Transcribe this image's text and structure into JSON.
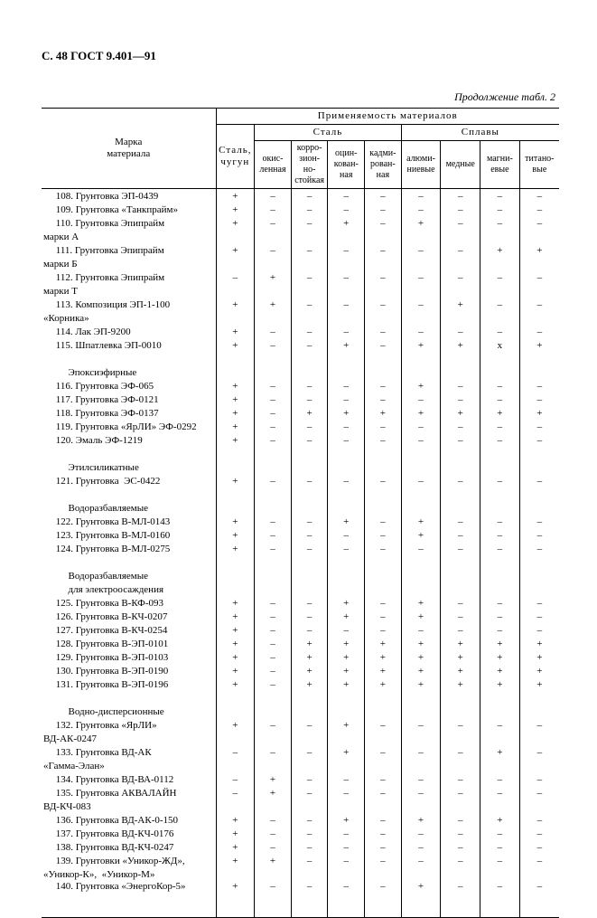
{
  "header": "С. 48 ГОСТ 9.401—91",
  "continuation": "Продолжение табл. 2",
  "thead": {
    "applic": "Применяемость  материалов",
    "label1": "Марка",
    "label2": "материала",
    "steel_iron1": "Сталь,",
    "steel_iron2": "чугун",
    "steel_group": "Сталь",
    "alloy_group": "Сплавы",
    "sub_oxid": "окис-\nленная",
    "sub_corr": "корро-\nзион-\nно-\nстойкая",
    "sub_zinc": "оцин-\nкован-\nная",
    "sub_cadm": "кадми-\nрован-\nная",
    "sub_alum": "алюми-\nниевые",
    "sub_copper": "медные",
    "sub_magn": "магни-\nевые",
    "sub_titan": "титано-\nвые"
  },
  "rows": [
    {
      "l": "     108. Грунтовка ЭП-0439",
      "c": [
        "+",
        "–",
        "–",
        "–",
        "–",
        "–",
        "–",
        "–",
        "–"
      ]
    },
    {
      "l": "     109. Грунтовка «Танкпрайм»",
      "c": [
        "+",
        "–",
        "–",
        "–",
        "–",
        "–",
        "–",
        "–",
        "–"
      ]
    },
    {
      "l": "     110. Грунтовка Эпипрайм",
      "c": [
        "+",
        "–",
        "–",
        "+",
        "–",
        "+",
        "–",
        "–",
        "–"
      ]
    },
    {
      "l": "марки А",
      "c": [
        "",
        "",
        "",
        "",
        "",
        "",
        "",
        "",
        ""
      ]
    },
    {
      "l": "     111. Грунтовка Эпипрайм",
      "c": [
        "+",
        "–",
        "–",
        "–",
        "–",
        "–",
        "–",
        "+",
        "+"
      ]
    },
    {
      "l": "марки Б",
      "c": [
        "",
        "",
        "",
        "",
        "",
        "",
        "",
        "",
        ""
      ]
    },
    {
      "l": "     112. Грунтовка Эпипрайм",
      "c": [
        "–",
        "+",
        "–",
        "–",
        "–",
        "–",
        "–",
        "–",
        "–"
      ]
    },
    {
      "l": "марки Т",
      "c": [
        "",
        "",
        "",
        "",
        "",
        "",
        "",
        "",
        ""
      ]
    },
    {
      "l": "     113. Композиция ЭП-1-100",
      "c": [
        "+",
        "+",
        "–",
        "–",
        "–",
        "–",
        "+",
        "–",
        "–"
      ]
    },
    {
      "l": "«Корника»",
      "c": [
        "",
        "",
        "",
        "",
        "",
        "",
        "",
        "",
        ""
      ]
    },
    {
      "l": "     114. Лак ЭП-9200",
      "c": [
        "+",
        "–",
        "–",
        "–",
        "–",
        "–",
        "–",
        "–",
        "–"
      ]
    },
    {
      "l": "     115. Шпатлевка ЭП-0010",
      "c": [
        "+",
        "–",
        "–",
        "+",
        "–",
        "+",
        "+",
        "х",
        "+"
      ]
    },
    {
      "l": "",
      "c": [
        "",
        "",
        "",
        "",
        "",
        "",
        "",
        "",
        ""
      ],
      "blank": true
    },
    {
      "l": "          Эпоксиэфирные",
      "c": [
        "",
        "",
        "",
        "",
        "",
        "",
        "",
        "",
        ""
      ]
    },
    {
      "l": "     116. Грунтовка ЭФ-065",
      "c": [
        "+",
        "–",
        "–",
        "–",
        "–",
        "+",
        "–",
        "–",
        "–"
      ]
    },
    {
      "l": "     117. Грунтовка ЭФ-0121",
      "c": [
        "+",
        "–",
        "–",
        "–",
        "–",
        "–",
        "–",
        "–",
        "–"
      ]
    },
    {
      "l": "     118. Грунтовка ЭФ-0137",
      "c": [
        "+",
        "–",
        "+",
        "+",
        "+",
        "+",
        "+",
        "+",
        "+"
      ]
    },
    {
      "l": "     119. Грунтовка «ЯрЛИ» ЭФ-0292",
      "c": [
        "+",
        "–",
        "–",
        "–",
        "–",
        "–",
        "–",
        "–",
        "–"
      ]
    },
    {
      "l": "     120. Эмаль ЭФ-1219",
      "c": [
        "+",
        "–",
        "–",
        "–",
        "–",
        "–",
        "–",
        "–",
        "–"
      ]
    },
    {
      "l": "",
      "c": [
        "",
        "",
        "",
        "",
        "",
        "",
        "",
        "",
        ""
      ],
      "blank": true
    },
    {
      "l": "          Этилсиликатные",
      "c": [
        "",
        "",
        "",
        "",
        "",
        "",
        "",
        "",
        ""
      ]
    },
    {
      "l": "     121. Грунтовка  ЭС-0422",
      "c": [
        "+",
        "–",
        "–",
        "–",
        "–",
        "–",
        "–",
        "–",
        "–"
      ]
    },
    {
      "l": "",
      "c": [
        "",
        "",
        "",
        "",
        "",
        "",
        "",
        "",
        ""
      ],
      "blank": true
    },
    {
      "l": "          Водоразбавляемые",
      "c": [
        "",
        "",
        "",
        "",
        "",
        "",
        "",
        "",
        ""
      ]
    },
    {
      "l": "     122. Грунтовка В-МЛ-0143",
      "c": [
        "+",
        "–",
        "–",
        "+",
        "–",
        "+",
        "–",
        "–",
        "–"
      ]
    },
    {
      "l": "     123. Грунтовка В-МЛ-0160",
      "c": [
        "+",
        "–",
        "–",
        "–",
        "–",
        "+",
        "–",
        "–",
        "–"
      ]
    },
    {
      "l": "     124. Грунтовка В-МЛ-0275",
      "c": [
        "+",
        "–",
        "–",
        "–",
        "–",
        "–",
        "–",
        "–",
        "–"
      ]
    },
    {
      "l": "",
      "c": [
        "",
        "",
        "",
        "",
        "",
        "",
        "",
        "",
        ""
      ],
      "blank": true
    },
    {
      "l": "          Водоразбавляемые",
      "c": [
        "",
        "",
        "",
        "",
        "",
        "",
        "",
        "",
        ""
      ]
    },
    {
      "l": "          для электроосаждения",
      "c": [
        "",
        "",
        "",
        "",
        "",
        "",
        "",
        "",
        ""
      ]
    },
    {
      "l": "     125. Грунтовка В-КФ-093",
      "c": [
        "+",
        "–",
        "–",
        "+",
        "–",
        "+",
        "–",
        "–",
        "–"
      ]
    },
    {
      "l": "     126. Грунтовка В-КЧ-0207",
      "c": [
        "+",
        "–",
        "–",
        "+",
        "–",
        "+",
        "–",
        "–",
        "–"
      ]
    },
    {
      "l": "     127. Грунтовка В-КЧ-0254",
      "c": [
        "+",
        "–",
        "–",
        "–",
        "–",
        "–",
        "–",
        "–",
        "–"
      ]
    },
    {
      "l": "     128. Грунтовка В-ЭП-0101",
      "c": [
        "+",
        "–",
        "+",
        "+",
        "+",
        "+",
        "+",
        "+",
        "+"
      ]
    },
    {
      "l": "     129. Грунтовка В-ЭП-0103",
      "c": [
        "+",
        "–",
        "+",
        "+",
        "+",
        "+",
        "+",
        "+",
        "+"
      ]
    },
    {
      "l": "     130. Грунтовка В-ЭП-0190",
      "c": [
        "+",
        "–",
        "+",
        "+",
        "+",
        "+",
        "+",
        "+",
        "+"
      ]
    },
    {
      "l": "     131. Грунтовка В-ЭП-0196",
      "c": [
        "+",
        "–",
        "+",
        "+",
        "+",
        "+",
        "+",
        "+",
        "+"
      ]
    },
    {
      "l": "",
      "c": [
        "",
        "",
        "",
        "",
        "",
        "",
        "",
        "",
        ""
      ],
      "blank": true
    },
    {
      "l": "          Водно-дисперсионные",
      "c": [
        "",
        "",
        "",
        "",
        "",
        "",
        "",
        "",
        ""
      ]
    },
    {
      "l": "     132. Грунтовка «ЯрЛИ»",
      "c": [
        "+",
        "–",
        "–",
        "+",
        "–",
        "–",
        "–",
        "–",
        "–"
      ]
    },
    {
      "l": "ВД-АК-0247",
      "c": [
        "",
        "",
        "",
        "",
        "",
        "",
        "",
        "",
        ""
      ]
    },
    {
      "l": "     133. Грунтовка ВД-АК",
      "c": [
        "–",
        "–",
        "–",
        "+",
        "–",
        "–",
        "–",
        "+",
        "–"
      ]
    },
    {
      "l": "«Гамма-Элан»",
      "c": [
        "",
        "",
        "",
        "",
        "",
        "",
        "",
        "",
        ""
      ]
    },
    {
      "l": "     134. Грунтовка ВД-ВА-0112",
      "c": [
        "–",
        "+",
        "–",
        "–",
        "–",
        "–",
        "–",
        "–",
        "–"
      ]
    },
    {
      "l": "     135. Грунтовка АКВАЛАЙН",
      "c": [
        "–",
        "+",
        "–",
        "–",
        "–",
        "–",
        "–",
        "–",
        "–"
      ]
    },
    {
      "l": "ВД-КЧ-083",
      "c": [
        "",
        "",
        "",
        "",
        "",
        "",
        "",
        "",
        ""
      ]
    },
    {
      "l": "     136. Грунтовка ВД-АК-0-150",
      "c": [
        "+",
        "–",
        "–",
        "+",
        "–",
        "+",
        "–",
        "+",
        "–"
      ]
    },
    {
      "l": "     137. Грунтовка ВД-КЧ-0176",
      "c": [
        "+",
        "–",
        "–",
        "–",
        "–",
        "–",
        "–",
        "–",
        "–"
      ]
    },
    {
      "l": "     138. Грунтовка ВД-КЧ-0247",
      "c": [
        "+",
        "–",
        "–",
        "–",
        "–",
        "–",
        "–",
        "–",
        "–"
      ]
    },
    {
      "l": "     139. Грунтовки «Уникор-ЖД»,",
      "c": [
        "+",
        "+",
        "–",
        "–",
        "–",
        "–",
        "–",
        "–",
        "–"
      ]
    },
    {
      "l": "«Уникор-К»,  «Уникор-М»",
      "c": [
        "",
        "",
        "",
        "",
        "",
        "",
        "",
        "",
        ""
      ]
    },
    {
      "l": "     140. Грунтовка «ЭнергоКор-5»",
      "c": [
        "+",
        "–",
        "–",
        "–",
        "–",
        "+",
        "–",
        "–",
        "–"
      ],
      "last": true
    }
  ]
}
